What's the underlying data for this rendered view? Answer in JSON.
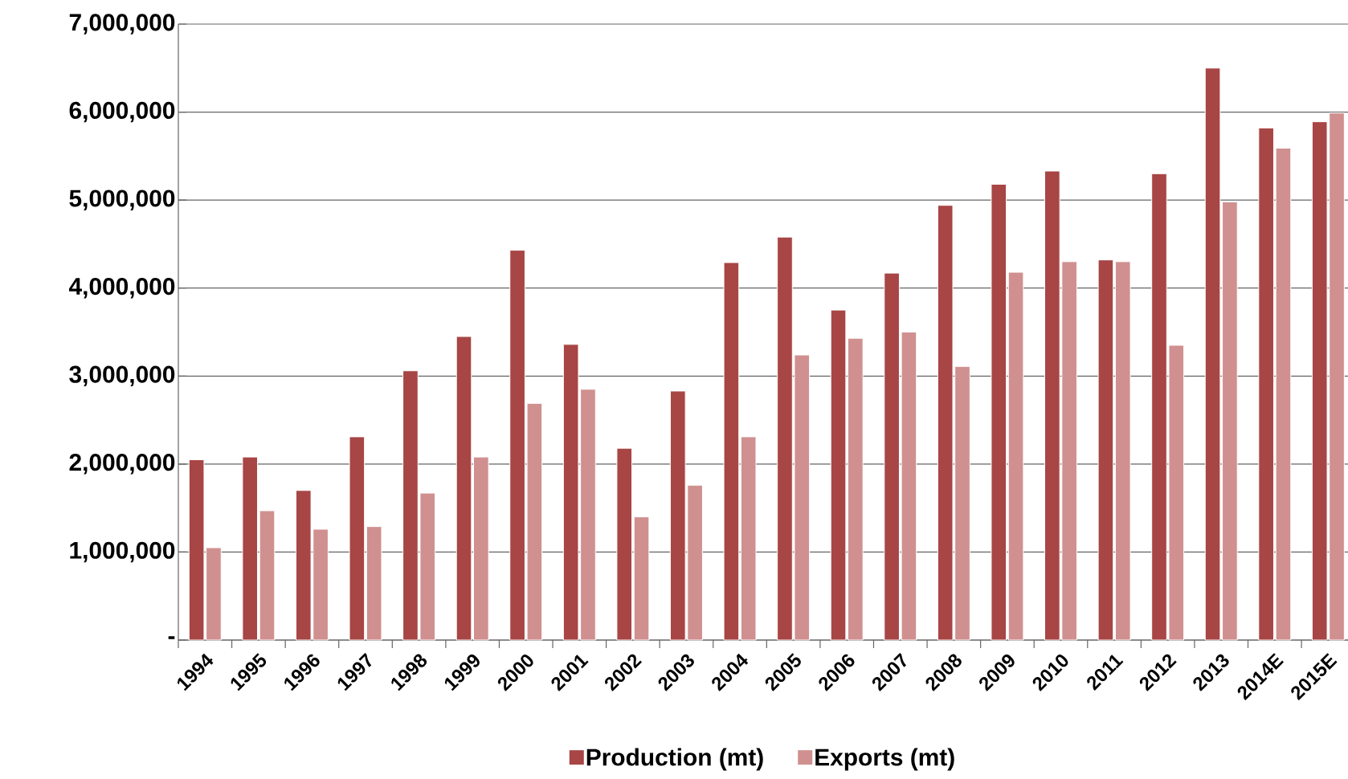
{
  "chart_data": {
    "type": "bar",
    "categories": [
      "1994",
      "1995",
      "1996",
      "1997",
      "1998",
      "1999",
      "2000",
      "2001",
      "2002",
      "2003",
      "2004",
      "2005",
      "2006",
      "2007",
      "2008",
      "2009",
      "2010",
      "2011",
      "2012",
      "2013",
      "2014E",
      "2015E"
    ],
    "series": [
      {
        "name": "Production (mt)",
        "color": "#a84545",
        "values": [
          2050000,
          2080000,
          1700000,
          2310000,
          3060000,
          3450000,
          4430000,
          3360000,
          2180000,
          2830000,
          4290000,
          4580000,
          3750000,
          4170000,
          4940000,
          5180000,
          5330000,
          4320000,
          5300000,
          6500000,
          5820000,
          5890000
        ]
      },
      {
        "name": "Exports (mt)",
        "color": "#d09090",
        "values": [
          1050000,
          1470000,
          1260000,
          1290000,
          1670000,
          2080000,
          2690000,
          2850000,
          1400000,
          1760000,
          2310000,
          3240000,
          3430000,
          3500000,
          3110000,
          4180000,
          4300000,
          4300000,
          3350000,
          4980000,
          5590000,
          5990000
        ]
      }
    ],
    "ylim": [
      0,
      7000000
    ],
    "yticks": [
      {
        "value": 0,
        "label": "-"
      },
      {
        "value": 1000000,
        "label": "1,000,000"
      },
      {
        "value": 2000000,
        "label": "2,000,000"
      },
      {
        "value": 3000000,
        "label": "3,000,000"
      },
      {
        "value": 4000000,
        "label": "4,000,000"
      },
      {
        "value": 5000000,
        "label": "5,000,000"
      },
      {
        "value": 6000000,
        "label": "6,000,000"
      },
      {
        "value": 7000000,
        "label": "7,000,000"
      }
    ],
    "grid": "y",
    "legend": "bottom"
  }
}
